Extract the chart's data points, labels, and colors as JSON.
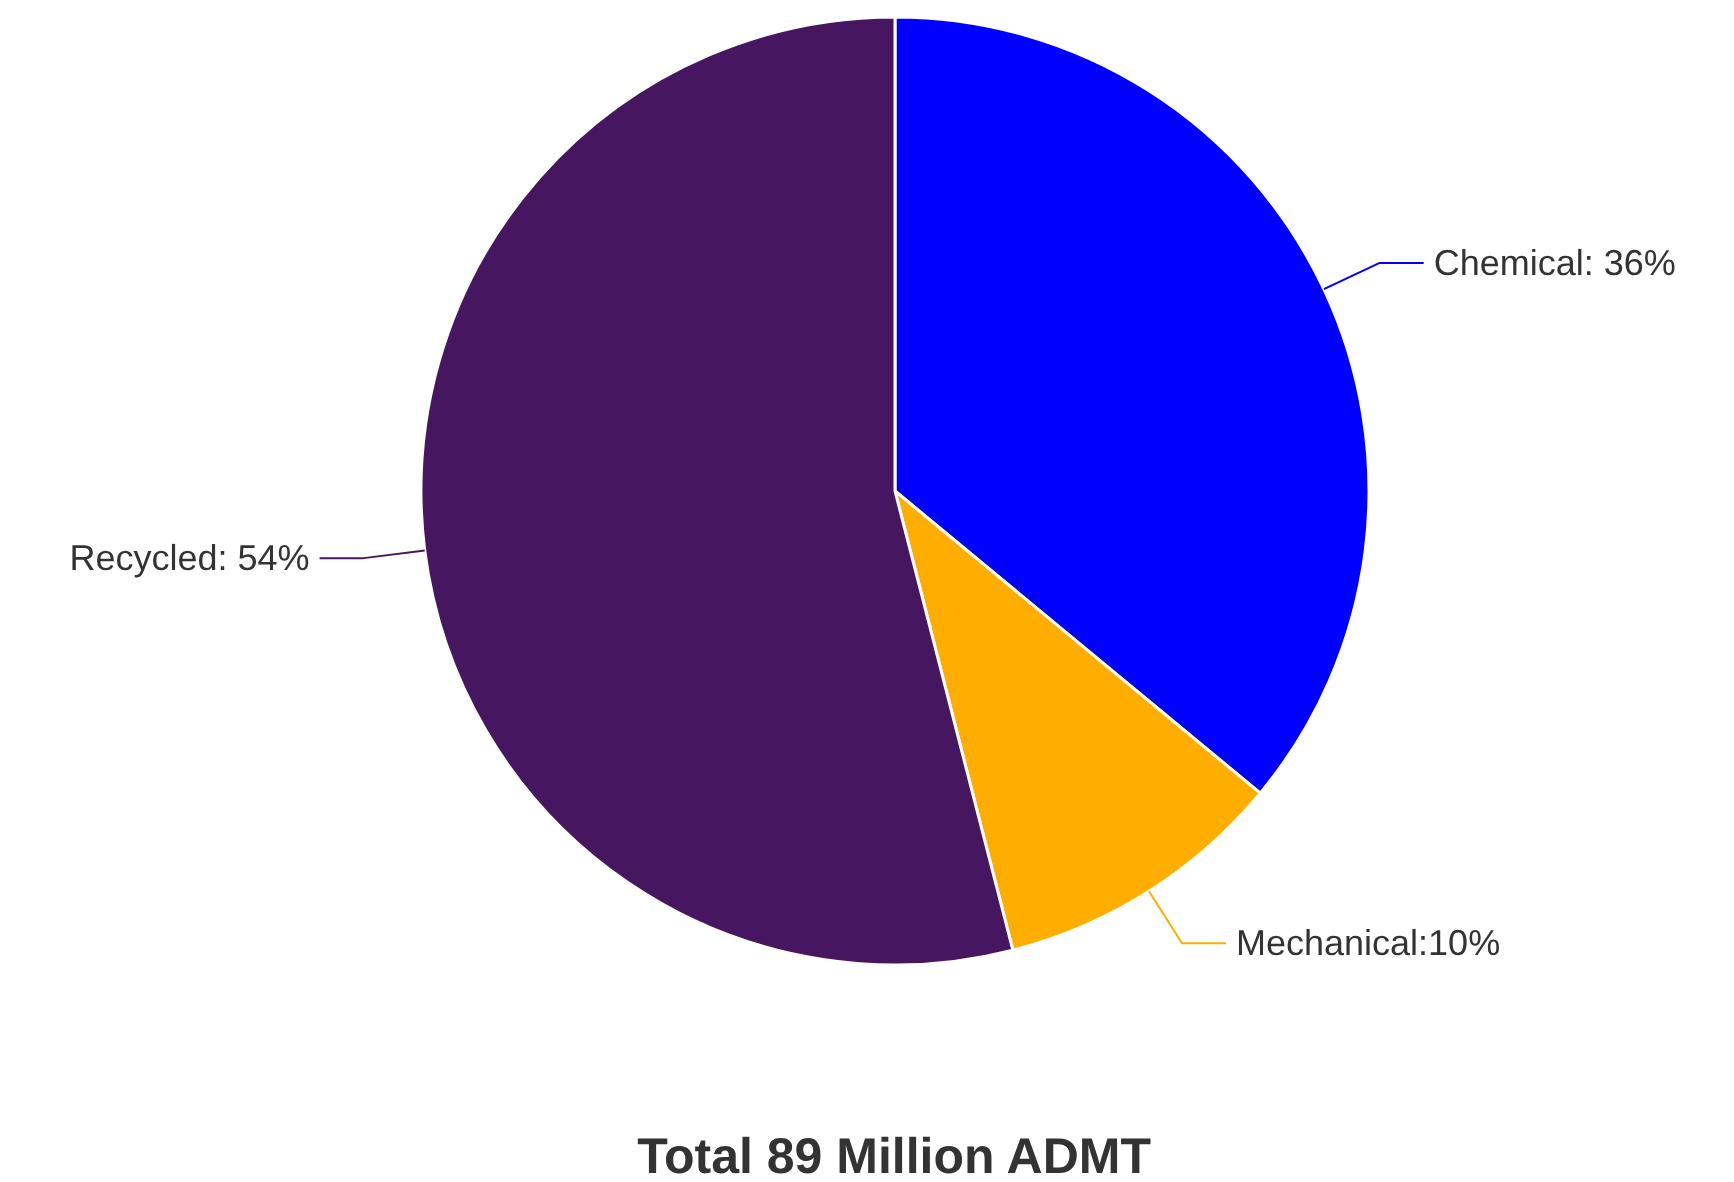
{
  "chart_data": {
    "type": "pie",
    "title": "Total 89 Million ADMT",
    "categories": [
      "Chemical: 36%",
      "Mechanical:10%",
      "Recycled: 54%"
    ],
    "values": [
      36,
      10,
      54
    ],
    "colors": [
      "#0000ff",
      "#ffae00",
      "#461660"
    ]
  }
}
